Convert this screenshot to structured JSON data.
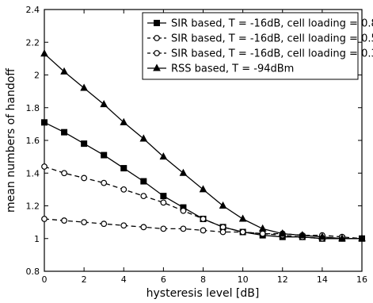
{
  "chart_data": {
    "type": "line",
    "title": "",
    "xlabel": "hysteresis level [dB]",
    "ylabel": "mean numbers of handoff",
    "xlim": [
      0,
      16
    ],
    "ylim": [
      0.8,
      2.4
    ],
    "xticks": [
      "0",
      "2",
      "4",
      "6",
      "8",
      "10",
      "12",
      "14",
      "16"
    ],
    "yticks": [
      "0.8",
      "1",
      "1.2",
      "1.4",
      "1.6",
      "1.8",
      "2",
      "2.2",
      "2.4"
    ],
    "grid": false,
    "legend_position": "top-right",
    "series": [
      {
        "name": "SIR based, T = -16dB, cell loading = 0.8",
        "marker": "square",
        "dashed": false,
        "x": [
          0,
          1,
          2,
          3,
          4,
          5,
          6,
          7,
          8,
          9,
          10,
          11,
          12,
          13,
          14,
          15,
          16
        ],
        "y": [
          1.71,
          1.65,
          1.58,
          1.51,
          1.43,
          1.35,
          1.26,
          1.19,
          1.12,
          1.07,
          1.04,
          1.02,
          1.01,
          1.01,
          1.0,
          1.0,
          1.0
        ]
      },
      {
        "name": "SIR based, T = -16dB, cell loading = 0.5",
        "marker": "circle",
        "dashed": true,
        "x": [
          0,
          1,
          2,
          3,
          4,
          5,
          6,
          7,
          8,
          9,
          10,
          11,
          12,
          13,
          14,
          15,
          16
        ],
        "y": [
          1.44,
          1.4,
          1.37,
          1.34,
          1.3,
          1.26,
          1.22,
          1.17,
          1.12,
          1.07,
          1.04,
          1.03,
          1.02,
          1.01,
          1.0,
          1.0,
          1.0
        ]
      },
      {
        "name": "SIR based, T = -16dB, cell loading = 0.3",
        "marker": "circle",
        "dashed": true,
        "x": [
          0,
          1,
          2,
          3,
          4,
          5,
          6,
          7,
          8,
          9,
          10,
          11,
          12,
          13,
          14,
          15,
          16
        ],
        "y": [
          1.12,
          1.11,
          1.1,
          1.09,
          1.08,
          1.07,
          1.06,
          1.06,
          1.05,
          1.04,
          1.04,
          1.03,
          1.03,
          1.02,
          1.02,
          1.01,
          1.0
        ]
      },
      {
        "name": "RSS based, T = -94dBm",
        "marker": "triangle",
        "dashed": false,
        "x": [
          0,
          1,
          2,
          3,
          4,
          5,
          6,
          7,
          8,
          9,
          10,
          11,
          12,
          13,
          14,
          15,
          16
        ],
        "y": [
          2.13,
          2.02,
          1.92,
          1.82,
          1.71,
          1.61,
          1.5,
          1.4,
          1.3,
          1.2,
          1.12,
          1.06,
          1.03,
          1.02,
          1.01,
          1.0,
          1.0
        ]
      }
    ]
  }
}
